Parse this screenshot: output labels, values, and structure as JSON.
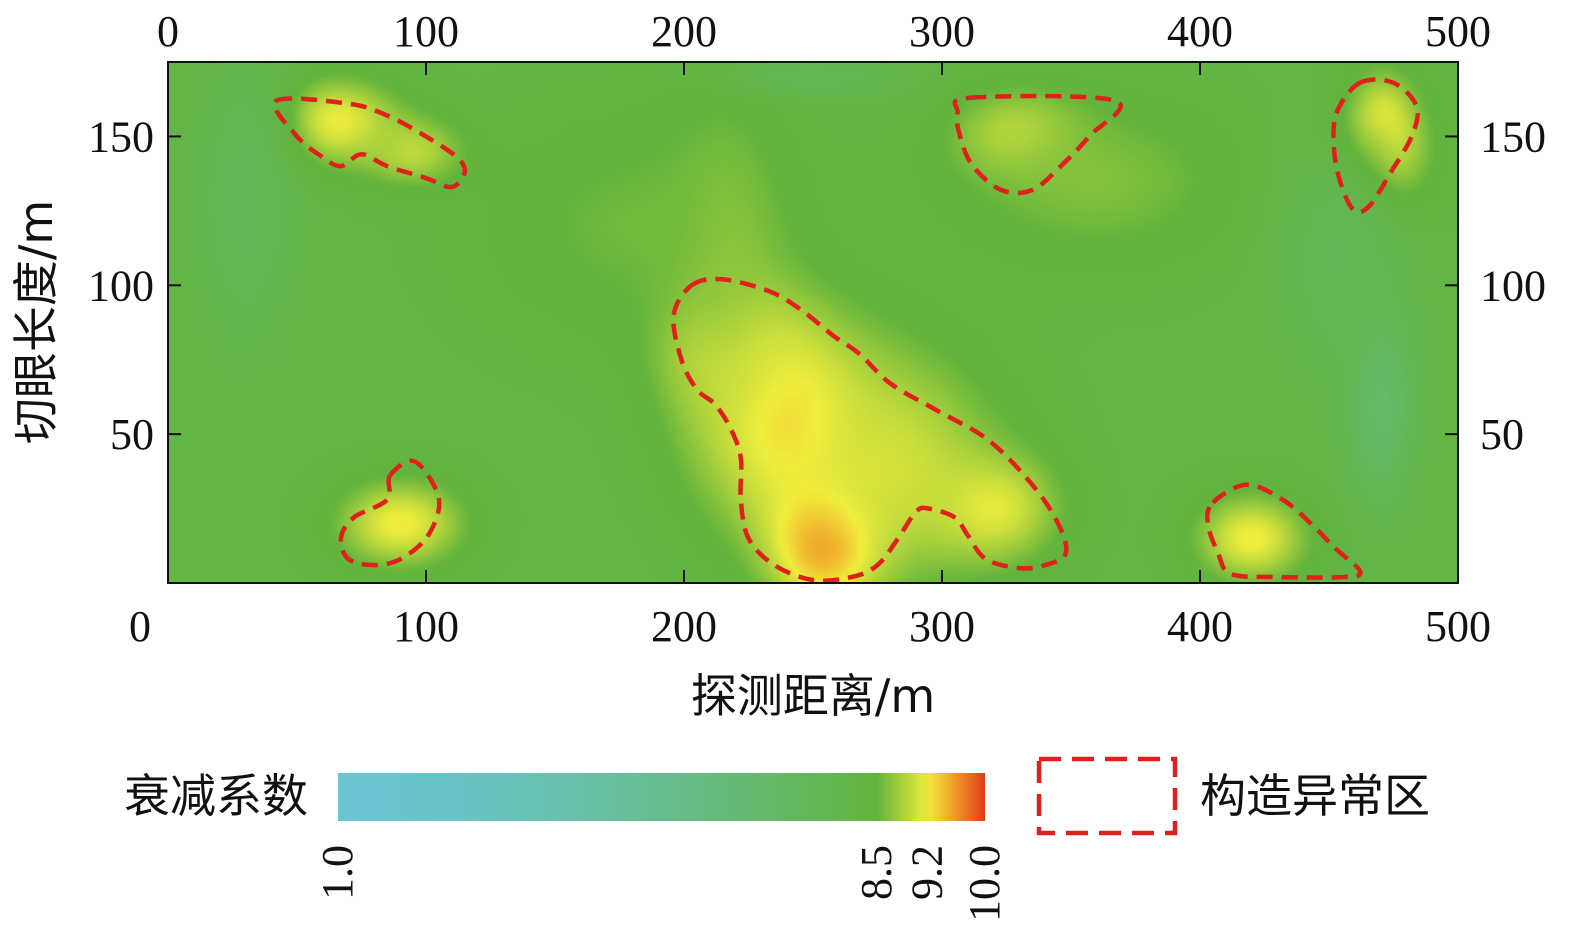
{
  "chart_data": {
    "type": "heatmap",
    "title": "",
    "xlabel": "探测距离/m",
    "ylabel": "切眼长度/m",
    "xlim": [
      0,
      500
    ],
    "ylim": [
      0,
      175
    ],
    "x_ticks": [
      "0",
      "100",
      "200",
      "300",
      "400",
      "500"
    ],
    "y_ticks": [
      "50",
      "100",
      "150"
    ],
    "colorbar": {
      "label": "衰减系数",
      "ticks": [
        "1.0",
        "8.5",
        "9.2",
        "10.0"
      ],
      "tick_values": [
        1.0,
        8.5,
        9.2,
        10.0
      ],
      "colors": [
        "#6bc4d2",
        "#62b43c",
        "#f0ee3c",
        "#e03a16"
      ]
    },
    "legend": {
      "label": "构造异常区",
      "line_color": "#e0201c",
      "line_style": "dashed"
    },
    "background_value": 8.2,
    "hotspots": [
      {
        "x": 255,
        "y": 15,
        "rx": 22,
        "ry": 22,
        "value": 10.0
      },
      {
        "x": 240,
        "y": 55,
        "rx": 35,
        "ry": 35,
        "value": 9.6
      },
      {
        "x": 220,
        "y": 80,
        "rx": 25,
        "ry": 20,
        "value": 9.5
      },
      {
        "x": 280,
        "y": 40,
        "rx": 45,
        "ry": 40,
        "value": 9.1
      },
      {
        "x": 320,
        "y": 25,
        "rx": 25,
        "ry": 18,
        "value": 9.2
      },
      {
        "x": 215,
        "y": 105,
        "rx": 25,
        "ry": 55,
        "value": 8.9
      },
      {
        "x": 180,
        "y": 120,
        "rx": 60,
        "ry": 40,
        "value": 8.6
      },
      {
        "x": 470,
        "y": 150,
        "rx": 10,
        "ry": 15,
        "value": 10.0
      },
      {
        "x": 470,
        "y": 145,
        "rx": 20,
        "ry": 25,
        "value": 9.3
      },
      {
        "x": 65,
        "y": 155,
        "rx": 25,
        "ry": 15,
        "value": 9.3
      },
      {
        "x": 95,
        "y": 145,
        "rx": 20,
        "ry": 12,
        "value": 9.0
      },
      {
        "x": 330,
        "y": 150,
        "rx": 25,
        "ry": 15,
        "value": 9.2
      },
      {
        "x": 90,
        "y": 20,
        "rx": 25,
        "ry": 15,
        "value": 9.3
      },
      {
        "x": 420,
        "y": 15,
        "rx": 22,
        "ry": 15,
        "value": 9.3
      },
      {
        "x": 360,
        "y": 135,
        "rx": 60,
        "ry": 30,
        "value": 8.7
      },
      {
        "x": 30,
        "y": 130,
        "rx": 18,
        "ry": 45,
        "value": 7.5
      },
      {
        "x": 470,
        "y": 60,
        "rx": 12,
        "ry": 30,
        "value": 6.8
      },
      {
        "x": 455,
        "y": 110,
        "rx": 25,
        "ry": 40,
        "value": 7.6
      },
      {
        "x": 250,
        "y": 170,
        "rx": 30,
        "ry": 6,
        "value": 7.6
      }
    ],
    "anomaly_regions": [
      {
        "name": "region-top-left",
        "points": [
          [
            42,
            162
          ],
          [
            70,
            161
          ],
          [
            85,
            157
          ],
          [
            100,
            150
          ],
          [
            112,
            143
          ],
          [
            115,
            138
          ],
          [
            110,
            133
          ],
          [
            100,
            136
          ],
          [
            85,
            140
          ],
          [
            75,
            144
          ],
          [
            67,
            140
          ],
          [
            60,
            143
          ],
          [
            50,
            150
          ]
        ]
      },
      {
        "name": "region-top-middle",
        "points": [
          [
            311,
            163
          ],
          [
            367,
            162
          ],
          [
            357,
            150
          ],
          [
            346,
            140
          ],
          [
            335,
            132
          ],
          [
            323,
            132
          ],
          [
            312,
            140
          ],
          [
            307,
            150
          ],
          [
            306,
            158
          ]
        ]
      },
      {
        "name": "region-top-right",
        "points": [
          [
            462,
            168
          ],
          [
            475,
            168
          ],
          [
            484,
            160
          ],
          [
            482,
            150
          ],
          [
            474,
            138
          ],
          [
            466,
            127
          ],
          [
            460,
            125
          ],
          [
            455,
            133
          ],
          [
            452,
            145
          ],
          [
            453,
            158
          ]
        ]
      },
      {
        "name": "region-center",
        "points": [
          [
            203,
            100
          ],
          [
            215,
            102
          ],
          [
            233,
            98
          ],
          [
            245,
            92
          ],
          [
            258,
            83
          ],
          [
            268,
            77
          ],
          [
            280,
            67
          ],
          [
            298,
            58
          ],
          [
            318,
            48
          ],
          [
            335,
            33
          ],
          [
            345,
            20
          ],
          [
            348,
            10
          ],
          [
            340,
            6
          ],
          [
            330,
            5
          ],
          [
            317,
            8
          ],
          [
            310,
            16
          ],
          [
            305,
            22
          ],
          [
            295,
            25
          ],
          [
            290,
            24
          ],
          [
            283,
            15
          ],
          [
            275,
            6
          ],
          [
            265,
            2
          ],
          [
            250,
            1
          ],
          [
            235,
            6
          ],
          [
            225,
            15
          ],
          [
            222,
            28
          ],
          [
            222,
            42
          ],
          [
            218,
            52
          ],
          [
            212,
            60
          ],
          [
            205,
            65
          ],
          [
            199,
            75
          ],
          [
            196,
            90
          ]
        ]
      },
      {
        "name": "region-bottom-left",
        "points": [
          [
            86,
            36
          ],
          [
            95,
            41
          ],
          [
            103,
            33
          ],
          [
            105,
            25
          ],
          [
            100,
            15
          ],
          [
            90,
            8
          ],
          [
            80,
            6
          ],
          [
            70,
            8
          ],
          [
            67,
            15
          ],
          [
            72,
            22
          ],
          [
            85,
            28
          ]
        ]
      },
      {
        "name": "region-bottom-right",
        "points": [
          [
            405,
            27
          ],
          [
            418,
            33
          ],
          [
            432,
            28
          ],
          [
            443,
            20
          ],
          [
            452,
            12
          ],
          [
            462,
            4
          ],
          [
            456,
            2
          ],
          [
            430,
            2
          ],
          [
            412,
            3
          ],
          [
            407,
            10
          ],
          [
            403,
            20
          ]
        ]
      }
    ]
  }
}
